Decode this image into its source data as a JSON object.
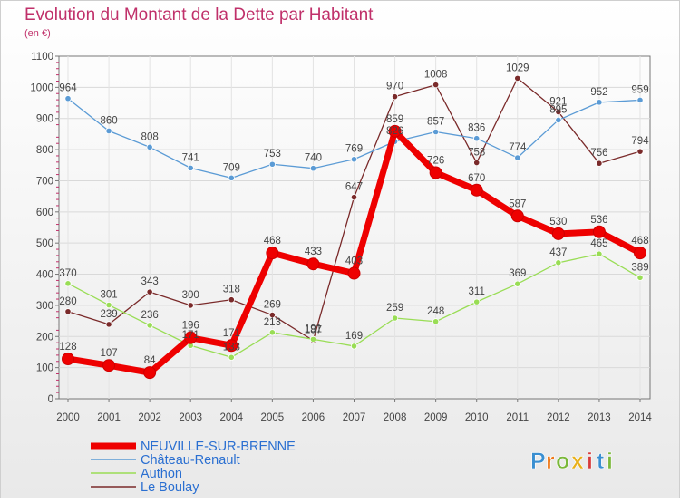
{
  "chart_data": {
    "type": "line",
    "title": "Evolution du Montant de la Dette par Habitant",
    "subtitle": "(en €)",
    "xlabel": "",
    "ylabel": "",
    "ylim": [
      0,
      1100
    ],
    "yticks": [
      0,
      100,
      200,
      300,
      400,
      500,
      600,
      700,
      800,
      900,
      1000,
      1100
    ],
    "x": [
      "2000",
      "2001",
      "2002",
      "2003",
      "2004",
      "2005",
      "2006",
      "2007",
      "2008",
      "2009",
      "2010",
      "2011",
      "2012",
      "2013",
      "2014"
    ],
    "grid": true,
    "legend_position": "bottom-left",
    "series": [
      {
        "name": "NEUVILLE-SUR-BRENNE",
        "color": "#ee0000",
        "values": [
          128,
          107,
          84,
          196,
          171,
          468,
          433,
          403,
          859,
          726,
          670,
          587,
          530,
          536,
          468
        ],
        "labels": [
          "128",
          "107",
          "84",
          "196",
          "171",
          "468",
          "433",
          "403",
          "859",
          "726",
          "670",
          "587",
          "530",
          "536",
          "468"
        ]
      },
      {
        "name": "Château-Renault",
        "color": "#5b9bd5",
        "values": [
          964,
          860,
          808,
          741,
          709,
          753,
          740,
          769,
          826,
          857,
          836,
          774,
          895,
          952,
          959
        ],
        "labels": [
          "964",
          "860",
          "808",
          "741",
          "709",
          "753",
          "740",
          "769",
          "826",
          "857",
          "836",
          "774",
          "895",
          "952",
          "959"
        ]
      },
      {
        "name": "Authon",
        "color": "#99dd55",
        "values": [
          370,
          301,
          236,
          171,
          133,
          213,
          191,
          169,
          259,
          248,
          311,
          369,
          437,
          465,
          389
        ],
        "labels": [
          "370",
          "301",
          "236",
          "171",
          "133",
          "213",
          "191",
          "169",
          "259",
          "248",
          "311",
          "369",
          "437",
          "465",
          "389"
        ]
      },
      {
        "name": "Le Boulay",
        "color": "#7a2a2a",
        "values": [
          280,
          239,
          343,
          300,
          318,
          269,
          187,
          647,
          970,
          1008,
          758,
          1029,
          921,
          756,
          794
        ],
        "labels": [
          "280",
          "239",
          "343",
          "300",
          "318",
          "269",
          "187",
          "647",
          "970",
          "1008",
          "758",
          "1029",
          "921",
          "756",
          "794"
        ]
      }
    ]
  },
  "brand": {
    "letters": [
      "P",
      "r",
      "o",
      "x",
      "i",
      "t",
      "i"
    ],
    "colors": [
      "#3a8fd1",
      "#f07a1a",
      "#7ab83a",
      "#e8b01a",
      "#d63a3a",
      "#3a8fd1",
      "#7ab83a"
    ]
  }
}
